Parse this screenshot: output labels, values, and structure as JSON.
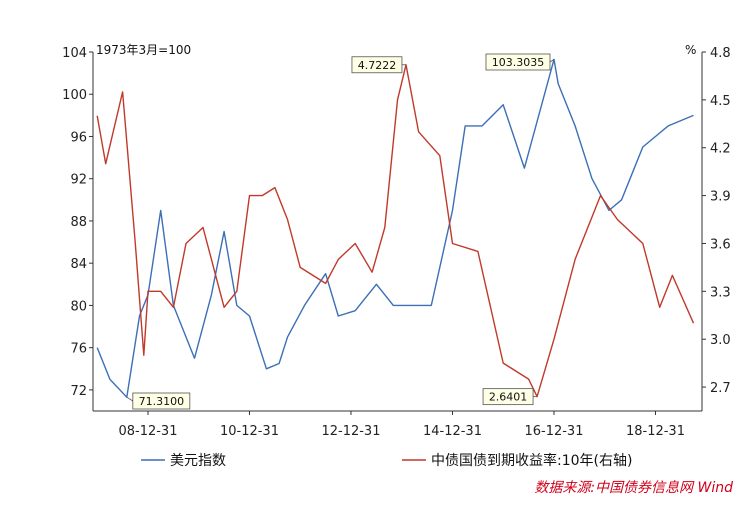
{
  "chart_data": {
    "type": "line",
    "unit_left": "1973年3月=100",
    "unit_right": "%",
    "x_ticks": [
      "08-12-31",
      "10-12-31",
      "12-12-31",
      "14-12-31",
      "16-12-31",
      "18-12-31"
    ],
    "y_left": {
      "min": 70,
      "max": 104,
      "ticks": [
        72,
        76,
        80,
        84,
        88,
        92,
        96,
        100,
        104
      ]
    },
    "y_right": {
      "min": 2.55,
      "max": 4.8,
      "ticks": [
        "2.7",
        "3.0",
        "3.3",
        "3.6",
        "3.9",
        "4.2",
        "4.5",
        "4.8"
      ]
    },
    "grid": false,
    "legend_position": "bottom",
    "series": [
      {
        "name": "美元指数",
        "axis": "left",
        "color": "#3b6fb6",
        "x": [
          "2007-12",
          "2008-03",
          "2008-07",
          "2008-10",
          "2008-12",
          "2009-03",
          "2009-06",
          "2009-11",
          "2010-03",
          "2010-06",
          "2010-09",
          "2010-12",
          "2011-04",
          "2011-07",
          "2011-09",
          "2012-01",
          "2012-06",
          "2012-09",
          "2013-01",
          "2013-06",
          "2013-10",
          "2014-03",
          "2014-07",
          "2014-12",
          "2015-03",
          "2015-07",
          "2015-12",
          "2016-05",
          "2016-12",
          "2017-01",
          "2017-05",
          "2017-09",
          "2018-01",
          "2018-04",
          "2018-09",
          "2019-03",
          "2019-09"
        ],
        "values": [
          76.0,
          73.0,
          71.31,
          79.0,
          81.0,
          89.0,
          80.0,
          75.0,
          81.0,
          87.0,
          80.0,
          79.0,
          74.0,
          74.5,
          77.0,
          80.0,
          83.0,
          79.0,
          79.5,
          82.0,
          80.0,
          80.0,
          80.0,
          89.0,
          97.0,
          97.0,
          99.0,
          93.0,
          103.3,
          101.0,
          97.0,
          92.0,
          89.0,
          90.0,
          95.0,
          97.0,
          98.0
        ]
      },
      {
        "name": "中债国债到期收益率:10年(右轴)",
        "axis": "right",
        "color": "#c0392b",
        "x": [
          "2007-12",
          "2008-02",
          "2008-06",
          "2008-09",
          "2008-11",
          "2008-12",
          "2009-03",
          "2009-06",
          "2009-09",
          "2010-01",
          "2010-06",
          "2010-09",
          "2010-12",
          "2011-03",
          "2011-06",
          "2011-09",
          "2011-12",
          "2012-06",
          "2012-09",
          "2013-01",
          "2013-05",
          "2013-08",
          "2013-11",
          "2014-01",
          "2014-04",
          "2014-09",
          "2014-12",
          "2015-06",
          "2015-12",
          "2016-06",
          "2016-08",
          "2016-12",
          "2017-05",
          "2017-11",
          "2018-03",
          "2018-09",
          "2019-01",
          "2019-04",
          "2019-09"
        ],
        "values": [
          4.4,
          4.1,
          4.55,
          3.6,
          2.9,
          3.3,
          3.3,
          3.2,
          3.6,
          3.7,
          3.2,
          3.3,
          3.9,
          3.9,
          3.95,
          3.75,
          3.45,
          3.35,
          3.5,
          3.6,
          3.42,
          3.7,
          4.5,
          4.72,
          4.3,
          4.15,
          3.6,
          3.55,
          2.85,
          2.75,
          2.64,
          3.0,
          3.5,
          3.9,
          3.75,
          3.6,
          3.2,
          3.4,
          3.1
        ]
      }
    ],
    "callouts": [
      {
        "label": "71.3100",
        "series": 0,
        "x": "2008-07",
        "y": 71.31,
        "side": "below"
      },
      {
        "label": "103.3035",
        "series": 0,
        "x": "2016-12",
        "y": 103.3,
        "side": "left"
      },
      {
        "label": "4.7222",
        "series": 1,
        "x": "2014-01",
        "y": 4.72,
        "side": "left"
      },
      {
        "label": "2.6401",
        "series": 1,
        "x": "2016-08",
        "y": 2.64,
        "side": "left"
      }
    ],
    "source": "数据来源:中国债券信息网 Wind"
  }
}
